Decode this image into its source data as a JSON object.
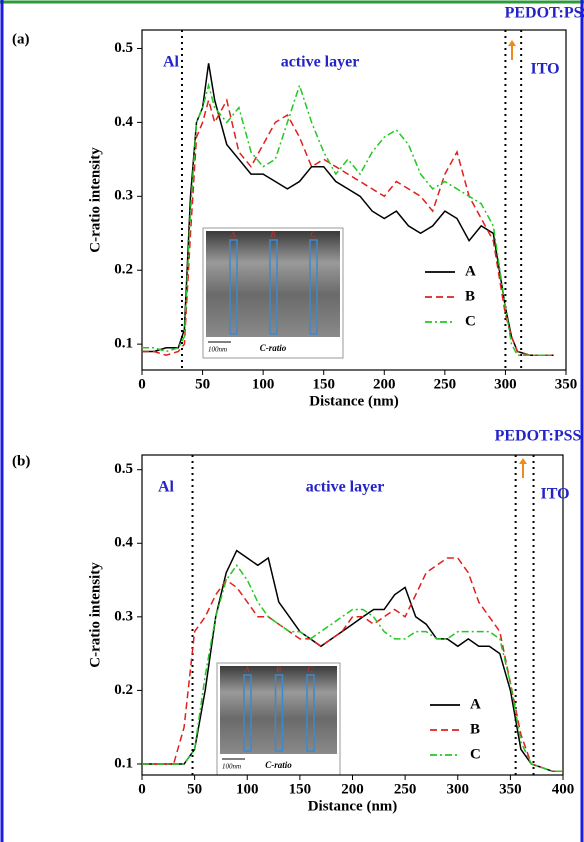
{
  "chart_data": [
    {
      "type": "line",
      "panel_label": "(a)",
      "x_label": "Distance (nm)",
      "y_label": "C-ratio intensity",
      "x": [
        0,
        10,
        20,
        30,
        35,
        40,
        45,
        50,
        55,
        60,
        70,
        80,
        90,
        100,
        110,
        120,
        130,
        140,
        150,
        160,
        170,
        180,
        190,
        200,
        210,
        220,
        230,
        240,
        250,
        260,
        270,
        280,
        290,
        300,
        305,
        310,
        320,
        330,
        340
      ],
      "series": [
        {
          "name": "A",
          "color": "#000000",
          "dash": "solid",
          "values": [
            0.09,
            0.09,
            0.095,
            0.095,
            0.12,
            0.3,
            0.4,
            0.42,
            0.48,
            0.43,
            0.37,
            0.35,
            0.33,
            0.33,
            0.32,
            0.31,
            0.32,
            0.34,
            0.34,
            0.32,
            0.31,
            0.3,
            0.28,
            0.27,
            0.28,
            0.26,
            0.25,
            0.26,
            0.28,
            0.27,
            0.24,
            0.26,
            0.25,
            0.15,
            0.11,
            0.09,
            0.085,
            0.085,
            0.085
          ]
        },
        {
          "name": "B",
          "color": "#e0201e",
          "dash": "dashed",
          "values": [
            0.09,
            0.09,
            0.085,
            0.09,
            0.1,
            0.25,
            0.38,
            0.4,
            0.43,
            0.4,
            0.43,
            0.36,
            0.34,
            0.37,
            0.4,
            0.41,
            0.38,
            0.34,
            0.35,
            0.34,
            0.33,
            0.32,
            0.31,
            0.3,
            0.32,
            0.31,
            0.3,
            0.28,
            0.33,
            0.36,
            0.3,
            0.27,
            0.24,
            0.14,
            0.11,
            0.09,
            0.085,
            0.085,
            0.085
          ]
        },
        {
          "name": "C",
          "color": "#22c822",
          "dash": "dashdot",
          "values": [
            0.095,
            0.095,
            0.09,
            0.095,
            0.11,
            0.28,
            0.4,
            0.42,
            0.45,
            0.42,
            0.4,
            0.42,
            0.36,
            0.34,
            0.35,
            0.4,
            0.45,
            0.4,
            0.36,
            0.33,
            0.35,
            0.33,
            0.36,
            0.38,
            0.39,
            0.37,
            0.33,
            0.31,
            0.32,
            0.31,
            0.3,
            0.29,
            0.26,
            0.15,
            0.1,
            0.085,
            0.085,
            0.085,
            0.085
          ]
        }
      ],
      "xlim": [
        0,
        350
      ],
      "ylim": [
        0.065,
        0.525
      ],
      "xticks": [
        0,
        50,
        100,
        150,
        200,
        250,
        300,
        350
      ],
      "yticks": [
        0.1,
        0.2,
        0.3,
        0.4,
        0.5
      ],
      "boundaries": [
        33,
        300,
        313
      ],
      "annotations": [
        "Al",
        "active layer",
        "PEDOT:PSS",
        "ITO"
      ],
      "legend": "lower right",
      "inset": {
        "labels": [
          "A",
          "B",
          "C"
        ],
        "scale": "100nm",
        "caption": "C-ratio"
      }
    },
    {
      "type": "line",
      "panel_label": "(b)",
      "x_label": "Distance (nm)",
      "y_label": "C-ratio intensity",
      "x": [
        0,
        10,
        20,
        30,
        40,
        50,
        60,
        70,
        80,
        90,
        100,
        110,
        120,
        130,
        140,
        150,
        160,
        170,
        180,
        190,
        200,
        210,
        220,
        230,
        240,
        250,
        260,
        270,
        280,
        290,
        300,
        310,
        320,
        330,
        340,
        350,
        360,
        370,
        380,
        390,
        400
      ],
      "series": [
        {
          "name": "A",
          "color": "#000000",
          "dash": "solid",
          "values": [
            0.1,
            0.1,
            0.1,
            0.1,
            0.1,
            0.12,
            0.2,
            0.3,
            0.36,
            0.39,
            0.38,
            0.37,
            0.38,
            0.32,
            0.3,
            0.28,
            0.27,
            0.26,
            0.27,
            0.28,
            0.29,
            0.3,
            0.31,
            0.31,
            0.33,
            0.34,
            0.3,
            0.29,
            0.27,
            0.27,
            0.26,
            0.27,
            0.26,
            0.26,
            0.25,
            0.2,
            0.12,
            0.1,
            0.095,
            0.09,
            0.09
          ]
        },
        {
          "name": "B",
          "color": "#e0201e",
          "dash": "dashed",
          "values": [
            0.1,
            0.1,
            0.1,
            0.1,
            0.15,
            0.28,
            0.3,
            0.33,
            0.35,
            0.34,
            0.32,
            0.3,
            0.3,
            0.29,
            0.28,
            0.27,
            0.27,
            0.26,
            0.27,
            0.28,
            0.3,
            0.3,
            0.29,
            0.3,
            0.31,
            0.3,
            0.33,
            0.36,
            0.37,
            0.38,
            0.38,
            0.36,
            0.32,
            0.3,
            0.28,
            0.21,
            0.14,
            0.1,
            0.095,
            0.09,
            0.09
          ]
        },
        {
          "name": "C",
          "color": "#22c822",
          "dash": "dashdot",
          "values": [
            0.1,
            0.1,
            0.1,
            0.1,
            0.1,
            0.12,
            0.22,
            0.3,
            0.35,
            0.37,
            0.35,
            0.32,
            0.3,
            0.29,
            0.28,
            0.28,
            0.27,
            0.28,
            0.29,
            0.3,
            0.31,
            0.31,
            0.3,
            0.28,
            0.27,
            0.27,
            0.28,
            0.28,
            0.27,
            0.27,
            0.28,
            0.28,
            0.28,
            0.28,
            0.27,
            0.21,
            0.13,
            0.1,
            0.095,
            0.09,
            0.09
          ]
        }
      ],
      "xlim": [
        0,
        400
      ],
      "ylim": [
        0.085,
        0.52
      ],
      "xticks": [
        0,
        50,
        100,
        150,
        200,
        250,
        300,
        350,
        400
      ],
      "yticks": [
        0.1,
        0.2,
        0.3,
        0.4,
        0.5
      ],
      "boundaries": [
        48,
        355,
        372
      ],
      "annotations": [
        "Al",
        "active layer",
        "PEDOT:PSS",
        "ITO"
      ],
      "legend": "lower right",
      "inset": {
        "labels": [
          "A",
          "B",
          "C"
        ],
        "scale": "100nm",
        "caption": "C-ratio"
      }
    }
  ]
}
